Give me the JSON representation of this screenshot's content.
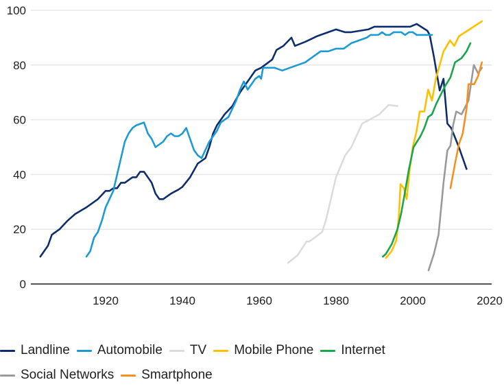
{
  "chart_data": {
    "type": "line",
    "title": "",
    "xlabel": "",
    "ylabel": "",
    "xlim": [
      1900,
      2021
    ],
    "ylim": [
      0,
      100
    ],
    "xticks": [
      1920,
      1940,
      1960,
      1980,
      2000,
      2020
    ],
    "yticks": [
      0,
      20,
      40,
      60,
      80,
      100
    ],
    "grid": "horizontal",
    "legend_position": "bottom",
    "series": [
      {
        "name": "Landline",
        "color": "#0d2d6c",
        "points": [
          [
            1903,
            10
          ],
          [
            1905,
            14
          ],
          [
            1906,
            18
          ],
          [
            1908,
            20
          ],
          [
            1910,
            23
          ],
          [
            1912,
            25.5
          ],
          [
            1915,
            28
          ],
          [
            1918,
            31
          ],
          [
            1920,
            34
          ],
          [
            1921,
            34
          ],
          [
            1922,
            35
          ],
          [
            1923,
            35
          ],
          [
            1924,
            37
          ],
          [
            1925,
            37
          ],
          [
            1926,
            38
          ],
          [
            1927,
            39
          ],
          [
            1928,
            39
          ],
          [
            1929,
            41
          ],
          [
            1930,
            41
          ],
          [
            1931,
            39
          ],
          [
            1932,
            37
          ],
          [
            1933,
            33
          ],
          [
            1934,
            31
          ],
          [
            1935,
            31
          ],
          [
            1937,
            33
          ],
          [
            1939,
            34.5
          ],
          [
            1940,
            35.5
          ],
          [
            1942,
            39
          ],
          [
            1944,
            44
          ],
          [
            1946,
            46
          ],
          [
            1947,
            50
          ],
          [
            1948,
            55
          ],
          [
            1949,
            58
          ],
          [
            1951,
            62
          ],
          [
            1953,
            65
          ],
          [
            1955,
            70
          ],
          [
            1957,
            74
          ],
          [
            1959,
            78
          ],
          [
            1960.5,
            79
          ],
          [
            1963.4,
            82
          ],
          [
            1964.5,
            85.5
          ],
          [
            1966.3,
            87
          ],
          [
            1968.4,
            90
          ],
          [
            1969.3,
            87
          ],
          [
            1972,
            88.5
          ],
          [
            1975,
            90.5
          ],
          [
            1980,
            93
          ],
          [
            1982.3,
            92
          ],
          [
            1984,
            92
          ],
          [
            1988.4,
            93
          ],
          [
            1990,
            94
          ],
          [
            1999.3,
            94
          ],
          [
            2001,
            95
          ],
          [
            2003.8,
            92.5
          ],
          [
            2004.4,
            91
          ],
          [
            2005.5,
            83
          ],
          [
            2007,
            70.7
          ],
          [
            2008,
            75
          ],
          [
            2009,
            58.6
          ],
          [
            2010,
            57
          ],
          [
            2012,
            50
          ],
          [
            2014,
            42
          ]
        ]
      },
      {
        "name": "Automobile",
        "color": "#1b9ad6",
        "points": [
          [
            1915,
            10
          ],
          [
            1916,
            12
          ],
          [
            1917,
            17
          ],
          [
            1918,
            19
          ],
          [
            1919,
            23
          ],
          [
            1920,
            28
          ],
          [
            1921,
            31
          ],
          [
            1922,
            34
          ],
          [
            1923,
            40
          ],
          [
            1924,
            46
          ],
          [
            1925,
            52
          ],
          [
            1926,
            55
          ],
          [
            1927,
            57
          ],
          [
            1928,
            58
          ],
          [
            1929,
            58.5
          ],
          [
            1930,
            59
          ],
          [
            1931,
            55
          ],
          [
            1932,
            53
          ],
          [
            1933,
            50
          ],
          [
            1934,
            51
          ],
          [
            1935,
            52
          ],
          [
            1936,
            54
          ],
          [
            1937,
            55
          ],
          [
            1938,
            54
          ],
          [
            1939,
            54
          ],
          [
            1940,
            55
          ],
          [
            1941,
            57
          ],
          [
            1942,
            53
          ],
          [
            1943,
            49
          ],
          [
            1944,
            47
          ],
          [
            1945,
            46
          ],
          [
            1946,
            49
          ],
          [
            1947,
            52
          ],
          [
            1948,
            54
          ],
          [
            1949,
            56
          ],
          [
            1950,
            59
          ],
          [
            1951,
            60
          ],
          [
            1952,
            61
          ],
          [
            1953,
            64
          ],
          [
            1954,
            67
          ],
          [
            1955,
            71
          ],
          [
            1956,
            74
          ],
          [
            1957,
            71
          ],
          [
            1958,
            73
          ],
          [
            1959,
            75
          ],
          [
            1960,
            76
          ],
          [
            1960.5,
            75
          ],
          [
            1961,
            79
          ],
          [
            1964,
            79
          ],
          [
            1966,
            78
          ],
          [
            1968,
            79
          ],
          [
            1970,
            80
          ],
          [
            1972,
            81
          ],
          [
            1974,
            83
          ],
          [
            1976,
            85
          ],
          [
            1978,
            85
          ],
          [
            1980,
            86
          ],
          [
            1982,
            86
          ],
          [
            1984,
            88
          ],
          [
            1986,
            89
          ],
          [
            1988,
            90
          ],
          [
            1989,
            91
          ],
          [
            1991,
            91
          ],
          [
            1992,
            92
          ],
          [
            1993,
            91
          ],
          [
            1994,
            91
          ],
          [
            1995,
            92
          ],
          [
            1997,
            92
          ],
          [
            1998,
            91
          ],
          [
            1999,
            92
          ],
          [
            2000,
            92
          ],
          [
            2001,
            91
          ],
          [
            2005,
            91
          ]
        ]
      },
      {
        "name": "TV",
        "color": "#dcdcdc",
        "points": [
          [
            1967.5,
            7.7
          ],
          [
            1970,
            10.5
          ],
          [
            1972.3,
            15.5
          ],
          [
            1973,
            15.5
          ],
          [
            1974.5,
            17
          ],
          [
            1976.4,
            19
          ],
          [
            1977.5,
            24
          ],
          [
            1979,
            33
          ],
          [
            1980,
            39
          ],
          [
            1982.4,
            47
          ],
          [
            1984,
            50
          ],
          [
            1986.8,
            58.6
          ],
          [
            1988,
            59.5
          ],
          [
            1991.3,
            62
          ],
          [
            1993.7,
            65.4
          ],
          [
            1996,
            65
          ]
        ]
      },
      {
        "name": "Mobile Phone",
        "color": "#ffc000",
        "points": [
          [
            1993,
            9.5
          ],
          [
            1994.5,
            12
          ],
          [
            1995.7,
            16
          ],
          [
            1996.4,
            25
          ],
          [
            1996.8,
            36.5
          ],
          [
            1997.7,
            35
          ],
          [
            1998.4,
            31
          ],
          [
            1999.2,
            42
          ],
          [
            2000,
            50
          ],
          [
            2001,
            56
          ],
          [
            2001.8,
            63
          ],
          [
            2003,
            63
          ],
          [
            2004,
            71
          ],
          [
            2005,
            67
          ],
          [
            2006,
            75
          ],
          [
            2007,
            80
          ],
          [
            2008,
            85
          ],
          [
            2009.7,
            89
          ],
          [
            2010.8,
            87
          ],
          [
            2012,
            90.5
          ],
          [
            2018,
            96
          ]
        ]
      },
      {
        "name": "Internet",
        "color": "#1aa64a",
        "points": [
          [
            1992.2,
            10
          ],
          [
            1993,
            11
          ],
          [
            1994.5,
            14.5
          ],
          [
            1996,
            20
          ],
          [
            1997,
            26
          ],
          [
            1997.9,
            33
          ],
          [
            1999,
            42
          ],
          [
            2000.2,
            50
          ],
          [
            2002,
            54
          ],
          [
            2003,
            57
          ],
          [
            2004,
            61
          ],
          [
            2005,
            62
          ],
          [
            2006,
            65.5
          ],
          [
            2007.4,
            69.5
          ],
          [
            2008.5,
            72.5
          ],
          [
            2009.8,
            75.5
          ],
          [
            2011,
            81
          ],
          [
            2012.7,
            82.5
          ],
          [
            2014,
            85
          ],
          [
            2015,
            88
          ]
        ]
      },
      {
        "name": "Social Networks",
        "color": "#9a9a9a",
        "points": [
          [
            2004.1,
            5
          ],
          [
            2005.5,
            11
          ],
          [
            2006.7,
            18
          ],
          [
            2007.4,
            28
          ],
          [
            2008,
            37
          ],
          [
            2009,
            48.8
          ],
          [
            2009.8,
            50.5
          ],
          [
            2010.5,
            58
          ],
          [
            2011.3,
            63
          ],
          [
            2012.7,
            62
          ],
          [
            2014.5,
            67
          ],
          [
            2015.9,
            80
          ],
          [
            2017,
            77
          ],
          [
            2018,
            79
          ]
        ]
      },
      {
        "name": "Smartphone",
        "color": "#f7901e",
        "points": [
          [
            2009.8,
            35
          ],
          [
            2011,
            44
          ],
          [
            2012,
            51
          ],
          [
            2013,
            55
          ],
          [
            2014,
            64
          ],
          [
            2014.5,
            73
          ],
          [
            2016,
            73
          ],
          [
            2017,
            76
          ],
          [
            2018,
            81
          ]
        ]
      }
    ]
  }
}
